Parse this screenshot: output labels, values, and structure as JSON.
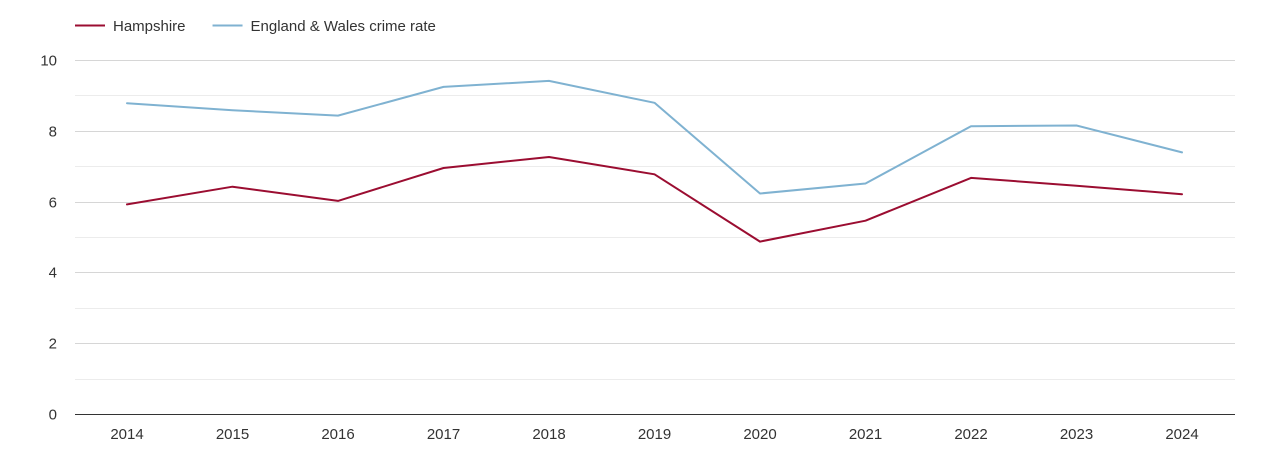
{
  "chart_data": {
    "type": "line",
    "title": "",
    "xlabel": "",
    "ylabel": "",
    "x": [
      "2014",
      "2015",
      "2016",
      "2017",
      "2018",
      "2019",
      "2020",
      "2021",
      "2022",
      "2023",
      "2024"
    ],
    "ylim": [
      0,
      10
    ],
    "yticks": [
      "0",
      "2",
      "4",
      "6",
      "8",
      "10"
    ],
    "ytick_values": [
      0,
      2,
      4,
      6,
      8,
      10
    ],
    "minor_grid_values": [
      1,
      3,
      5,
      7,
      9
    ],
    "grid": true,
    "legend_position": "top-left",
    "series": [
      {
        "name": "Hampshire",
        "color": "#9b0d31",
        "values": [
          5.92,
          6.42,
          6.02,
          6.95,
          7.26,
          6.77,
          4.87,
          5.46,
          6.67,
          6.45,
          6.21
        ]
      },
      {
        "name": "England & Wales crime rate",
        "color": "#7fb2d1",
        "values": [
          8.78,
          8.58,
          8.43,
          9.24,
          9.41,
          8.79,
          6.23,
          6.51,
          8.13,
          8.15,
          7.39
        ]
      }
    ]
  },
  "colors": {
    "grid": "#d6d6d6",
    "grid_minor": "#ececec",
    "axis": "#333333",
    "text": "#333333"
  }
}
